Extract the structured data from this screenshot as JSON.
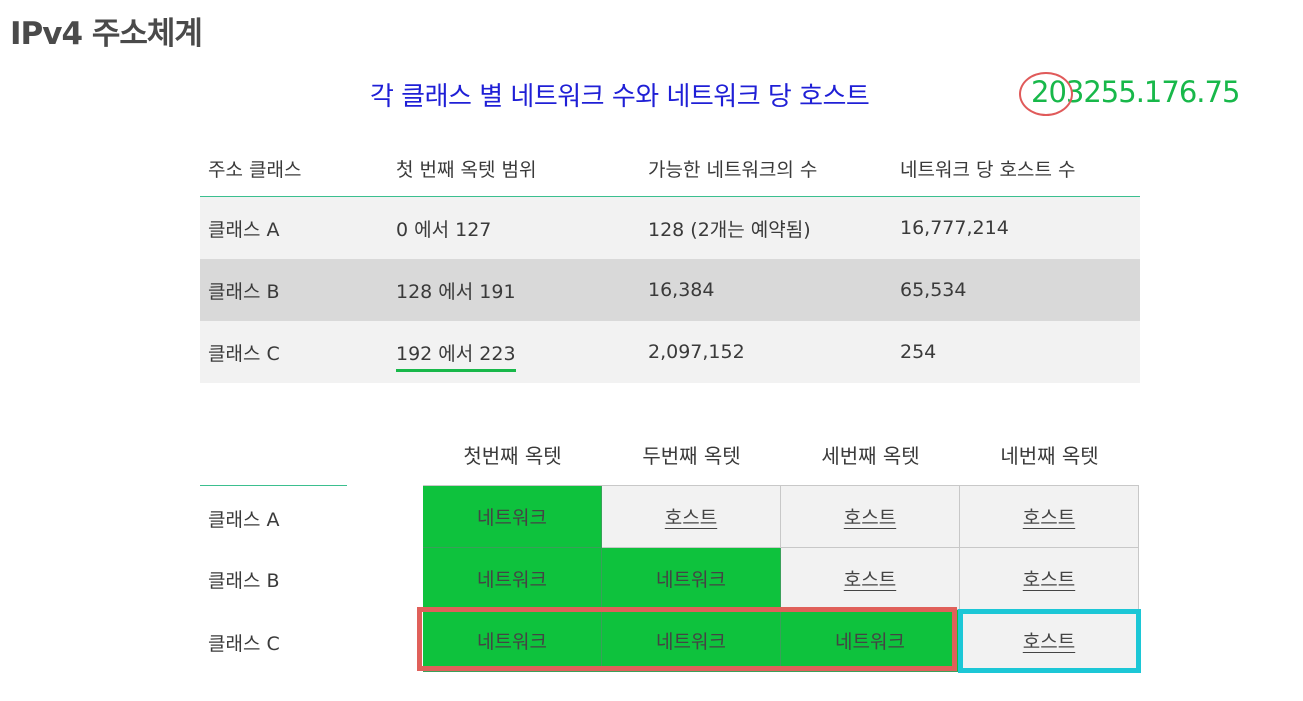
{
  "title": "IPv4 주소체계",
  "subtitle": "각 클래스 별 네트워크 수와 네트워크 당 호스트",
  "ip_example": {
    "first_octet": "203",
    "rest": "255.176.75"
  },
  "class_table": {
    "headers": [
      "주소 클래스",
      "첫 번째 옥텟 범위",
      "가능한 네트워크의 수",
      "네트워크 당 호스트 수"
    ],
    "rows": [
      [
        "클래스 A",
        "0 에서 127",
        "128 (2개는 예약됨)",
        "16,777,214"
      ],
      [
        "클래스 B",
        "128 에서 191",
        "16,384",
        "65,534"
      ],
      [
        "클래스 C",
        "192 에서 223",
        "2,097,152",
        "254"
      ]
    ]
  },
  "octet_table": {
    "headers": [
      "첫번째 옥텟",
      "두번째 옥텟",
      "세번째 옥텟",
      "네번째 옥텟"
    ],
    "rows": [
      {
        "label": "클래스 A",
        "cells": [
          "네트워크",
          "호스트",
          "호스트",
          "호스트"
        ]
      },
      {
        "label": "클래스 B",
        "cells": [
          "네트워크",
          "네트워크",
          "호스트",
          "호스트"
        ]
      },
      {
        "label": "클래스 C",
        "cells": [
          "네트워크",
          "네트워크",
          "네트워크",
          "호스트"
        ]
      }
    ]
  },
  "colors": {
    "network": "#0ec23d",
    "host": "#f2f2f2",
    "subtitle": "#1f1fd6",
    "ip": "#18b84a",
    "highlight_red": "#e0605a",
    "highlight_cyan": "#1cc7d6"
  }
}
